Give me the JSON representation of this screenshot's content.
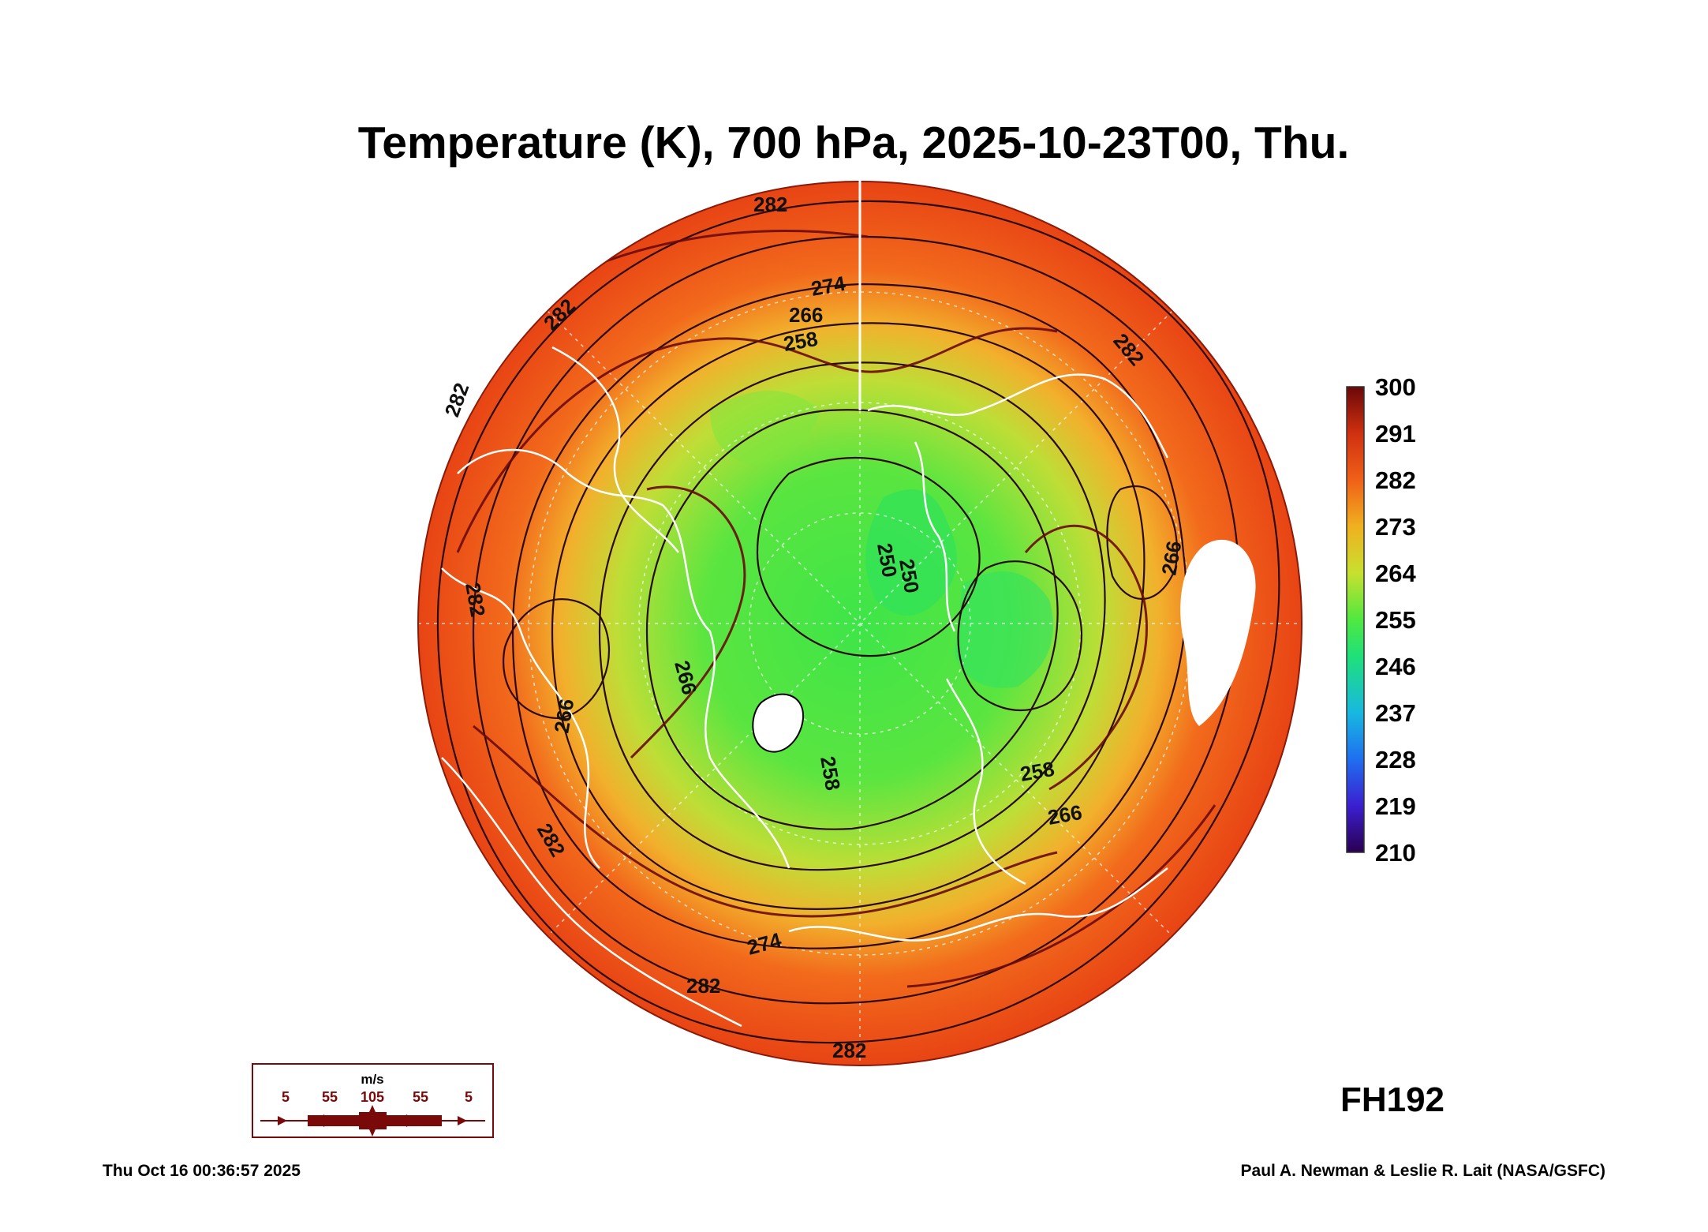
{
  "title": "Temperature (K), 700 hPa, 2025-10-23T00, Thu.",
  "forecast_hour": "FH192",
  "run_timestamp": "Thu Oct 16 00:36:57 2025",
  "credit": "Paul A. Newman & Leslie R. Lait (NASA/GSFC)",
  "colorbar": {
    "unit": "K",
    "min": 210,
    "max": 300,
    "labels": [
      "300",
      "291",
      "282",
      "273",
      "264",
      "255",
      "246",
      "237",
      "228",
      "219",
      "210"
    ],
    "colors": [
      "#2a0050",
      "#3b1fd0",
      "#1f6ff0",
      "#18b8e0",
      "#1ee07a",
      "#50e840",
      "#c8e030",
      "#f0b020",
      "#f06018",
      "#d03010",
      "#6a0808"
    ]
  },
  "contour_labels": [
    "282",
    "282",
    "282",
    "282",
    "282",
    "282",
    "282",
    "282",
    "274",
    "274",
    "266",
    "266",
    "266",
    "266",
    "266",
    "258",
    "258",
    "258",
    "250",
    "250"
  ],
  "vector_legend": {
    "unit": "m/s",
    "speeds": [
      "5",
      "55",
      "105",
      "55",
      "5"
    ],
    "color": "#7a0a0a"
  },
  "map_colors": {
    "warm_ring": "#f05818",
    "mid_ring": "#f2a12a",
    "cool_ring": "#c9de3a",
    "core": "#46e64a",
    "contour": "#2a0a0a",
    "coastline": "#ffffff"
  }
}
